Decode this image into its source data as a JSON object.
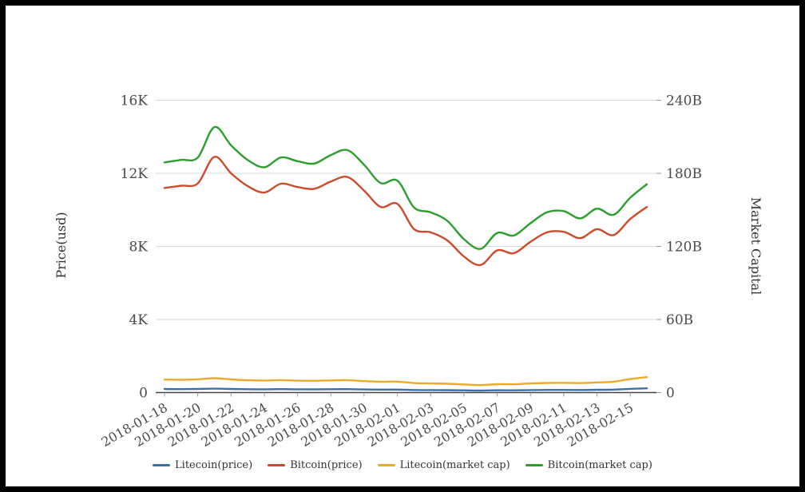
{
  "chart_data": {
    "type": "line",
    "title": "",
    "x": [
      "2018-01-18",
      "2018-01-19",
      "2018-01-20",
      "2018-01-21",
      "2018-01-22",
      "2018-01-23",
      "2018-01-24",
      "2018-01-25",
      "2018-01-26",
      "2018-01-27",
      "2018-01-28",
      "2018-01-29",
      "2018-01-30",
      "2018-01-31",
      "2018-02-01",
      "2018-02-02",
      "2018-02-03",
      "2018-02-04",
      "2018-02-05",
      "2018-02-06",
      "2018-02-07",
      "2018-02-08",
      "2018-02-09",
      "2018-02-10",
      "2018-02-11",
      "2018-02-12",
      "2018-02-13",
      "2018-02-14",
      "2018-02-15",
      "2018-02-16"
    ],
    "x_tick_labels": [
      "2018-01-18",
      "2018-01-20",
      "2018-01-22",
      "2018-01-24",
      "2018-01-26",
      "2018-01-28",
      "2018-01-30",
      "2018-02-01",
      "2018-02-03",
      "2018-02-05",
      "2018-02-07",
      "2018-02-09",
      "2018-02-11",
      "2018-02-13",
      "2018-02-15"
    ],
    "x_tick_every": 2,
    "series": [
      {
        "name": "Litecoin(price)",
        "axis": "price",
        "color": "#3e6fad",
        "values": [
          195,
          190,
          198,
          215,
          196,
          184,
          180,
          186,
          179,
          177,
          182,
          186,
          171,
          161,
          163,
          141,
          136,
          131,
          121,
          111,
          126,
          123,
          136,
          143,
          146,
          141,
          151,
          161,
          201,
          231
        ]
      },
      {
        "name": "Bitcoin(price)",
        "axis": "price",
        "color": "#cc4b2a",
        "values": [
          11200,
          11320,
          11450,
          12900,
          12000,
          11300,
          10950,
          11430,
          11250,
          11150,
          11550,
          11800,
          11050,
          10160,
          10330,
          8950,
          8770,
          8330,
          7450,
          6980,
          7780,
          7630,
          8250,
          8770,
          8800,
          8450,
          8940,
          8620,
          9500,
          10160
        ]
      },
      {
        "name": "Litecoin(market cap)",
        "axis": "mcap",
        "color": "#ecaa2b",
        "values": [
          10.7,
          10.5,
          10.9,
          11.8,
          10.8,
          10.1,
          9.9,
          10.2,
          9.8,
          9.7,
          10.0,
          10.2,
          9.4,
          8.9,
          9.0,
          7.8,
          7.5,
          7.2,
          6.7,
          6.1,
          6.9,
          6.8,
          7.5,
          7.9,
          8.0,
          7.8,
          8.3,
          8.9,
          11.1,
          12.7
        ]
      },
      {
        "name": "Bitcoin(market cap)",
        "axis": "mcap",
        "color": "#2b9e2d",
        "values": [
          189,
          191,
          193,
          218,
          203,
          191,
          185,
          193,
          190,
          188,
          195,
          199,
          187,
          172,
          174,
          152,
          148,
          141,
          126,
          118,
          131,
          129,
          139,
          148,
          149,
          143,
          151,
          146,
          160,
          171
        ]
      }
    ],
    "left_axis": {
      "title": "Price(usd)",
      "range": [
        0,
        16000
      ],
      "ticks": [
        {
          "v": 0,
          "label": "0"
        },
        {
          "v": 4000,
          "label": "4K"
        },
        {
          "v": 8000,
          "label": "8K"
        },
        {
          "v": 12000,
          "label": "12K"
        },
        {
          "v": 16000,
          "label": "16K"
        }
      ]
    },
    "right_axis": {
      "title": "Market Capital",
      "range": [
        0,
        240
      ],
      "ticks": [
        {
          "v": 0,
          "label": "0"
        },
        {
          "v": 60,
          "label": "60B"
        },
        {
          "v": 120,
          "label": "120B"
        },
        {
          "v": 180,
          "label": "180B"
        },
        {
          "v": 240,
          "label": "240B"
        }
      ]
    },
    "grid": true,
    "legend_position": "bottom"
  },
  "styles": {
    "background": "#ffffff",
    "frame_color": "#000000",
    "grid_color": "#d9d9d9",
    "axis_line_color": "#444444",
    "tick_color": "#999999",
    "tick_text_color": "#4a4a4a"
  }
}
